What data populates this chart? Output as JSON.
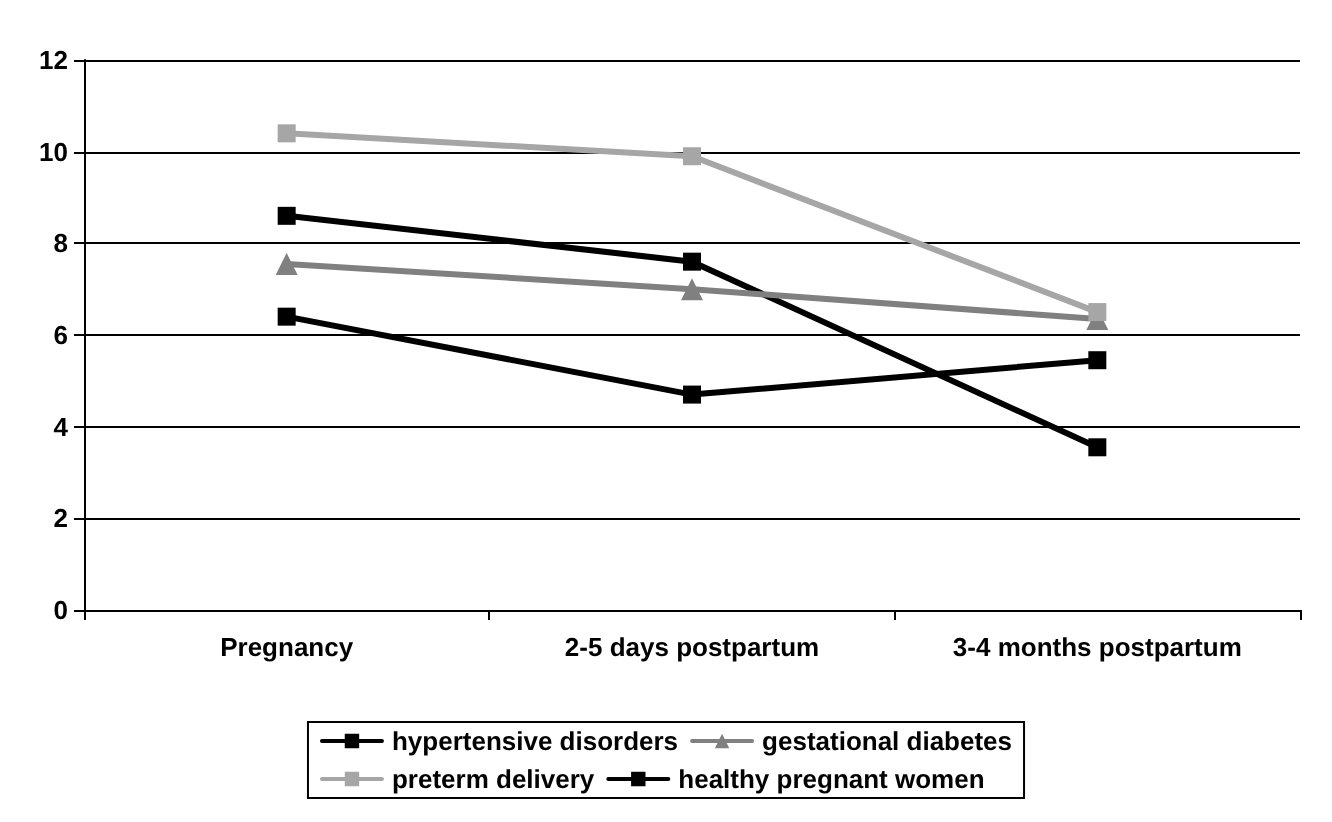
{
  "chart_data": {
    "type": "line",
    "categories": [
      "Pregnancy",
      "2-5 days postpartum",
      "3-4 months postpartum"
    ],
    "series": [
      {
        "name": "hypertensive disorders",
        "color": "#000000",
        "marker": "square",
        "values": [
          8.6,
          7.6,
          3.55
        ]
      },
      {
        "name": "gestational diabetes",
        "color": "#808080",
        "marker": "triangle",
        "values": [
          7.55,
          7.0,
          6.35
        ]
      },
      {
        "name": "preterm delivery",
        "color": "#a6a6a6",
        "marker": "square",
        "values": [
          10.4,
          9.9,
          6.5
        ]
      },
      {
        "name": "healthy pregnant women",
        "color": "#000000",
        "marker": "square",
        "values": [
          6.4,
          4.7,
          5.45
        ]
      }
    ],
    "ylim": [
      0,
      12
    ],
    "yticks": [
      0,
      2,
      4,
      6,
      8,
      10,
      12
    ],
    "grid": "y",
    "legend": "bottom",
    "line_style": "solid"
  }
}
